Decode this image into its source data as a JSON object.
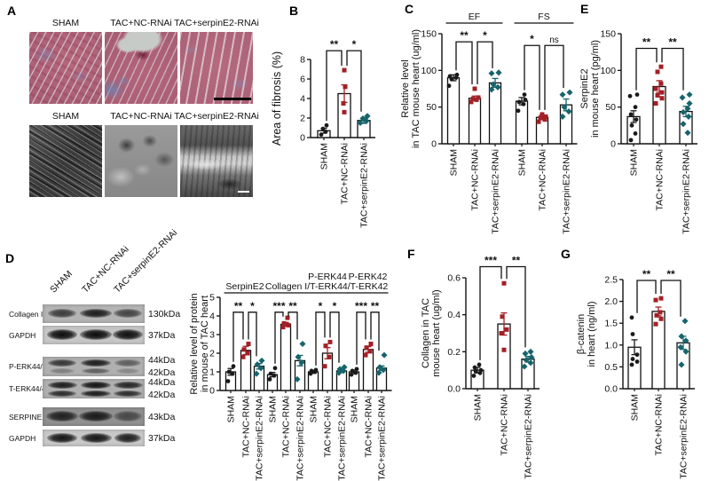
{
  "panel_labels": {
    "A": "A",
    "B": "B",
    "C": "C",
    "D": "D",
    "E": "E",
    "F": "F",
    "G": "G"
  },
  "groups": [
    "SHAM",
    "TAC+NC-RNAi",
    "TAC+serpinE2-RNAi"
  ],
  "colors": {
    "sham": "#1a1a1a",
    "nc": "#a32026",
    "serpin": "#17646c"
  },
  "panel_a": {
    "top_labels": [
      "SHAM",
      "TAC+NC-RNAi",
      "TAC+serpinE2-RNAi"
    ],
    "bottom_labels": [
      "SHAM",
      "TAC+NC-RNAi",
      "TAC+serpinE2-RNAi"
    ]
  },
  "panel_d": {
    "blot_col_labels": [
      "SHAM",
      "TAC+NC-RNAi",
      "TAC+serpinE2-RNAi"
    ],
    "blot_rows": [
      {
        "label": "Collagen I",
        "kda": [
          "130kDa"
        ]
      },
      {
        "label": "GAPDH",
        "kda": [
          "37kDa"
        ]
      },
      {
        "label": "P-ERK44/42",
        "kda": [
          "44kDa",
          "42kDa"
        ]
      },
      {
        "label": "T-ERK44/42",
        "kda": [
          "44kDa",
          "42kDa"
        ]
      },
      {
        "label": "SERPINE2",
        "kda": [
          "43kDa"
        ]
      },
      {
        "label": "GAPDH",
        "kda": [
          "37kDa"
        ]
      }
    ]
  },
  "chart_data": [
    {
      "id": "B",
      "type": "bar",
      "ylabel_lines": [
        "Area of fibrosis (%)"
      ],
      "ylim": [
        0,
        8
      ],
      "yticks": [
        "0",
        "2",
        "4",
        "6",
        "8"
      ],
      "categories": [
        "SHAM",
        "TAC+NC-RNAi",
        "TAC+serpinE2-RNAi"
      ],
      "values": [
        0.7,
        4.5,
        1.75
      ],
      "errors": [
        0.25,
        0.9,
        0.3
      ],
      "points": [
        [
          0.3,
          0.6,
          0.9,
          1.25
        ],
        [
          2.6,
          3.5,
          5.2,
          6.9
        ],
        [
          1.5,
          1.7,
          1.95,
          2.2
        ]
      ],
      "jitters": [
        [
          -3,
          2,
          -1,
          3
        ],
        [
          0,
          -1,
          1,
          0
        ],
        [
          -4,
          3,
          -1,
          4
        ]
      ],
      "brackets": [
        {
          "i1": 0,
          "i2": 1,
          "label": "**",
          "y": 8.9
        },
        {
          "i1": 1,
          "i2": 2,
          "label": "*",
          "y": 8.9
        }
      ]
    },
    {
      "id": "C",
      "type": "bar",
      "ylabel_lines": [
        "Relative level",
        "in TAC mouse heart (ug/ml)"
      ],
      "ylim": [
        0,
        150
      ],
      "yticks": [
        "0",
        "50",
        "100",
        "150"
      ],
      "categories": [
        "SHAM",
        "TAC+NC-RNAi",
        "TAC+serpinE2-RNAi",
        "SHAM",
        "TAC+NC-RNAi",
        "TAC+serpinE2-RNAi"
      ],
      "values": [
        90,
        62,
        83,
        58,
        36,
        53
      ],
      "errors": [
        4,
        3,
        6,
        5,
        3,
        8
      ],
      "points": [
        [
          79,
          88,
          90,
          92,
          94
        ],
        [
          57,
          60,
          61,
          63,
          75
        ],
        [
          74,
          77,
          81,
          96,
          97
        ],
        [
          45,
          54,
          57,
          60,
          67
        ],
        [
          30,
          33,
          35,
          37,
          40
        ],
        [
          37,
          44,
          50,
          67,
          70
        ]
      ],
      "jitters": [
        [
          -5,
          -2,
          3,
          -4,
          4
        ],
        [
          -4,
          2,
          -2,
          4,
          0
        ],
        [
          -4,
          3,
          -2,
          -4,
          4
        ],
        [
          -4,
          2,
          -3,
          4,
          3
        ],
        [
          -4,
          3,
          -2,
          4,
          0
        ],
        [
          -4,
          3,
          -2,
          -4,
          4
        ]
      ],
      "group_spans": [
        {
          "label_lines": [
            "EF"
          ],
          "from": 0,
          "to": 2
        },
        {
          "label_lines": [
            "FS"
          ],
          "from": 3,
          "to": 5
        }
      ],
      "brackets": [
        {
          "i1": 0,
          "i2": 1,
          "label": "**",
          "y": 139
        },
        {
          "i1": 1,
          "i2": 2,
          "label": "*",
          "y": 139
        },
        {
          "i1": 3,
          "i2": 4,
          "label": "*",
          "y": 134
        },
        {
          "i1": 4,
          "i2": 5,
          "label": "ns",
          "y": 134
        }
      ]
    },
    {
      "id": "D",
      "type": "bar",
      "ylabel_lines": [
        "Relative level of  protein",
        "in mouse of TAC heart"
      ],
      "ylim": [
        0,
        5
      ],
      "yticks": [
        "0",
        "1",
        "2",
        "3",
        "4",
        "5"
      ],
      "categories": [
        "SHAM",
        "TAC+NC-RNAi",
        "TAC+serpinE2-RNAi",
        "SHAM",
        "TAC+NC-RNAi",
        "TAC+serpinE2-RNAi",
        "SHAM",
        "TAC+NC-RNAi",
        "TAC+serpinE2-RNAi",
        "SHAM",
        "TAC+NC-RNAi",
        "TAC+serpinE2-RNAi"
      ],
      "values": [
        1.0,
        2.15,
        1.3,
        0.85,
        3.55,
        1.6,
        1.0,
        2.0,
        1.05,
        1.0,
        2.2,
        1.2
      ],
      "errors": [
        0.18,
        0.22,
        0.15,
        0.12,
        0.1,
        0.28,
        0.08,
        0.3,
        0.08,
        0.1,
        0.15,
        0.12
      ],
      "points": [
        [
          0.5,
          0.9,
          1.0,
          1.3
        ],
        [
          1.8,
          2.0,
          2.2,
          2.5
        ],
        [
          0.9,
          1.2,
          1.4,
          1.6
        ],
        [
          0.6,
          0.8,
          0.9,
          1.2
        ],
        [
          3.4,
          3.5,
          3.6,
          3.9
        ],
        [
          0.6,
          1.5,
          1.8,
          2.5
        ],
        [
          0.9,
          1.0,
          1.05,
          1.1
        ],
        [
          1.3,
          1.8,
          2.4,
          2.6
        ],
        [
          0.95,
          1.05,
          1.15,
          1.25
        ],
        [
          0.85,
          0.95,
          1.05,
          1.15
        ],
        [
          1.9,
          2.1,
          2.3,
          2.5
        ],
        [
          0.95,
          1.1,
          1.25,
          1.9
        ]
      ],
      "jitters": [
        [
          -3,
          2,
          -2,
          3
        ],
        [
          -3,
          2,
          -2,
          3
        ],
        [
          -3,
          2,
          -2,
          3
        ],
        [
          -3,
          2,
          -2,
          3
        ],
        [
          -3,
          3,
          -2,
          2
        ],
        [
          -3,
          2,
          -2,
          3
        ],
        [
          -3,
          2,
          -2,
          3
        ],
        [
          -3,
          2,
          -2,
          3
        ],
        [
          -3,
          2,
          -2,
          3
        ],
        [
          -3,
          2,
          -2,
          3
        ],
        [
          -3,
          2,
          -2,
          3
        ],
        [
          -3,
          2,
          -2,
          3
        ]
      ],
      "group_spans": [
        {
          "label_lines": [
            "SerpinE2"
          ],
          "from": 0,
          "to": 2
        },
        {
          "label_lines": [
            "Collagen I"
          ],
          "from": 3,
          "to": 5
        },
        {
          "label_lines": [
            "P-ERK44",
            "/T-ERK44"
          ],
          "from": 6,
          "to": 8
        },
        {
          "label_lines": [
            "P-ERK42",
            "/T-ERK42"
          ],
          "from": 9,
          "to": 11
        }
      ],
      "brackets": [
        {
          "i1": 0,
          "i2": 1,
          "label": "**",
          "y": 4.2
        },
        {
          "i1": 1,
          "i2": 2,
          "label": "*",
          "y": 4.2
        },
        {
          "i1": 3,
          "i2": 4,
          "label": "***",
          "y": 4.2
        },
        {
          "i1": 4,
          "i2": 5,
          "label": "**",
          "y": 4.2
        },
        {
          "i1": 6,
          "i2": 7,
          "label": "*",
          "y": 4.2
        },
        {
          "i1": 7,
          "i2": 8,
          "label": "*",
          "y": 4.2
        },
        {
          "i1": 9,
          "i2": 10,
          "label": "***",
          "y": 4.2
        },
        {
          "i1": 10,
          "i2": 11,
          "label": "**",
          "y": 4.2
        }
      ]
    },
    {
      "id": "E",
      "type": "bar",
      "ylabel_lines": [
        "SerpinE2",
        "in mouse heart (pg/ml)"
      ],
      "ylim": [
        0,
        150
      ],
      "yticks": [
        "0",
        "50",
        "100",
        "150"
      ],
      "categories": [
        "SHAM",
        "TAC+NC-RNAi",
        "TAC+serpinE2-RNAi"
      ],
      "values": [
        37,
        78,
        44
      ],
      "errors": [
        8,
        8,
        7
      ],
      "points": [
        [
          5,
          14,
          25,
          33,
          40,
          50,
          65,
          67
        ],
        [
          55,
          62,
          66,
          70,
          75,
          82,
          98,
          105
        ],
        [
          15,
          27,
          37,
          43,
          48,
          55,
          63,
          67
        ]
      ],
      "jitters": [
        [
          -3,
          2,
          -2,
          3,
          -3,
          2,
          -4,
          4
        ],
        [
          -4,
          3,
          -2,
          3,
          -4,
          2,
          -2,
          2
        ],
        [
          2,
          -3,
          3,
          -3,
          2,
          4,
          -4,
          4
        ]
      ],
      "brackets": [
        {
          "i1": 0,
          "i2": 1,
          "label": "**",
          "y": 130
        },
        {
          "i1": 1,
          "i2": 2,
          "label": "**",
          "y": 130
        }
      ]
    },
    {
      "id": "F",
      "type": "bar",
      "ylabel_lines": [
        "Collagen in TAC",
        "mouse heart (ug/ml)"
      ],
      "ylim": [
        0,
        0.6
      ],
      "yticks": [
        "0.0",
        "0.2",
        "0.4",
        "0.6"
      ],
      "categories": [
        "SHAM",
        "TAC+NC-RNAi",
        "TAC+serpinE2-RNAi"
      ],
      "values": [
        0.1,
        0.35,
        0.16
      ],
      "errors": [
        0.015,
        0.06,
        0.015
      ],
      "points": [
        [
          0.07,
          0.085,
          0.095,
          0.1,
          0.115,
          0.13
        ],
        [
          0.21,
          0.3,
          0.32,
          0.39,
          0.57
        ],
        [
          0.12,
          0.14,
          0.155,
          0.17,
          0.19,
          0.2
        ]
      ],
      "jitters": [
        [
          -4,
          3,
          -2,
          4,
          -3,
          2
        ],
        [
          0,
          -3,
          3,
          -2,
          0
        ],
        [
          -4,
          3,
          -2,
          4,
          -3,
          3
        ]
      ],
      "brackets": [
        {
          "i1": 0,
          "i2": 1,
          "label": "***",
          "y": 0.66
        },
        {
          "i1": 1,
          "i2": 2,
          "label": "**",
          "y": 0.66
        }
      ]
    },
    {
      "id": "G",
      "type": "bar",
      "ylabel_lines": [
        "β-catenin",
        "in heart (ng/ml)"
      ],
      "ylim": [
        0,
        2.5
      ],
      "yticks": [
        "0.0",
        "0.5",
        "1.0",
        "1.5",
        "2.0",
        "2.5"
      ],
      "categories": [
        "SHAM",
        "TAC+NC-RNAi",
        "TAC+serpinE2-RNAi"
      ],
      "values": [
        0.95,
        1.77,
        1.05
      ],
      "errors": [
        0.17,
        0.1,
        0.15
      ],
      "points": [
        [
          0.55,
          0.62,
          0.68,
          0.78,
          1.25,
          1.63
        ],
        [
          1.48,
          1.6,
          1.68,
          1.75,
          2.03,
          2.07
        ],
        [
          0.55,
          0.85,
          0.95,
          1.1,
          1.2,
          1.55
        ]
      ],
      "jitters": [
        [
          -3,
          3,
          -2,
          3,
          -2,
          -3
        ],
        [
          -3,
          3,
          -2,
          2,
          -3,
          3
        ],
        [
          -2,
          3,
          -3,
          3,
          -2,
          2
        ]
      ],
      "brackets": [
        {
          "i1": 0,
          "i2": 1,
          "label": "**",
          "y": 2.48
        },
        {
          "i1": 1,
          "i2": 2,
          "label": "**",
          "y": 2.48
        }
      ]
    }
  ]
}
